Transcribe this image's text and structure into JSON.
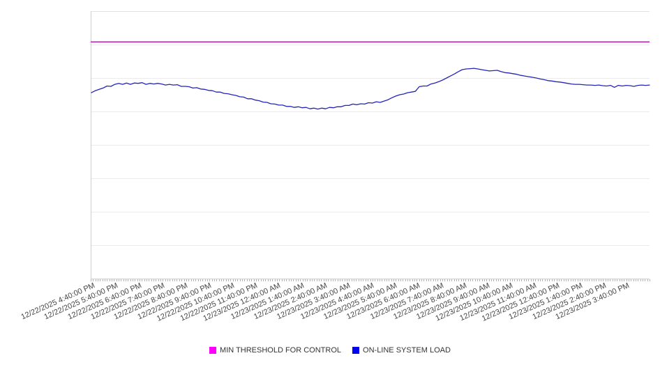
{
  "chart_data": {
    "type": "line",
    "title": "",
    "xlabel": "",
    "ylabel": "",
    "x_axis": {
      "tick_labels": [
        "12/22/2025 4:40:00 PM",
        "12/22/2025 5:40:00 PM",
        "12/22/2025 6:40:00 PM",
        "12/22/2025 7:40:00 PM",
        "12/22/2025 8:40:00 PM",
        "12/22/2025 9:40:00 PM",
        "12/22/2025 10:40:00 PM",
        "12/22/2025 11:40:00 PM",
        "12/23/2025 12:40:00 AM",
        "12/23/2025 1:40:00 AM",
        "12/23/2025 2:40:00 AM",
        "12/23/2025 3:40:00 AM",
        "12/23/2025 4:40:00 AM",
        "12/23/2025 5:40:00 AM",
        "12/23/2025 6:40:00 AM",
        "12/23/2025 7:40:00 AM",
        "12/23/2025 8:40:00 AM",
        "12/23/2025 9:40:00 AM",
        "12/23/2025 10:40:00 AM",
        "12/23/2025 11:40:00 AM",
        "12/23/2025 12:40:00 PM",
        "12/23/2025 1:40:00 PM",
        "12/23/2025 2:40:00 PM",
        "12/23/2025 3:40:00 PM"
      ],
      "minor_ticks_per_hour": 10
    },
    "y_axis": {
      "labels_visible": false,
      "unit": "unlabeled gridline units",
      "ylim": [
        0,
        8
      ],
      "gridline_interval": 1
    },
    "grid": "horizontal-only",
    "legend_position": "bottom-center",
    "series": [
      {
        "name": "MIN THRESHOLD FOR CONTROL",
        "type": "constant-line",
        "value": 7.08,
        "line_color": "#c32ac3",
        "swatch_color": "#ff00ff"
      },
      {
        "name": "ON-LINE SYSTEM LOAD",
        "type": "line",
        "line_color": "#2323b8",
        "swatch_color": "#0000ee",
        "x_start_label": "12/22/2025 4:40:00 PM",
        "interval_minutes": 10,
        "values": [
          5.56,
          5.62,
          5.66,
          5.7,
          5.76,
          5.75,
          5.81,
          5.84,
          5.81,
          5.85,
          5.81,
          5.85,
          5.84,
          5.86,
          5.81,
          5.84,
          5.82,
          5.84,
          5.82,
          5.79,
          5.81,
          5.79,
          5.8,
          5.75,
          5.75,
          5.74,
          5.7,
          5.71,
          5.67,
          5.66,
          5.63,
          5.62,
          5.58,
          5.58,
          5.54,
          5.53,
          5.5,
          5.48,
          5.44,
          5.43,
          5.38,
          5.38,
          5.34,
          5.32,
          5.28,
          5.27,
          5.23,
          5.22,
          5.19,
          5.19,
          5.15,
          5.15,
          5.12,
          5.14,
          5.11,
          5.12,
          5.08,
          5.1,
          5.07,
          5.1,
          5.08,
          5.12,
          5.11,
          5.14,
          5.14,
          5.18,
          5.18,
          5.22,
          5.2,
          5.23,
          5.22,
          5.26,
          5.25,
          5.29,
          5.27,
          5.31,
          5.35,
          5.41,
          5.46,
          5.5,
          5.52,
          5.56,
          5.58,
          5.6,
          5.74,
          5.76,
          5.76,
          5.82,
          5.85,
          5.89,
          5.94,
          6.0,
          6.06,
          6.12,
          6.19,
          6.25,
          6.27,
          6.28,
          6.29,
          6.27,
          6.25,
          6.23,
          6.21,
          6.22,
          6.23,
          6.19,
          6.16,
          6.15,
          6.13,
          6.11,
          6.08,
          6.06,
          6.04,
          6.02,
          6.0,
          5.97,
          5.95,
          5.92,
          5.91,
          5.89,
          5.88,
          5.86,
          5.84,
          5.82,
          5.81,
          5.81,
          5.8,
          5.79,
          5.79,
          5.78,
          5.79,
          5.77,
          5.76,
          5.78,
          5.72,
          5.78,
          5.76,
          5.78,
          5.77,
          5.75,
          5.78,
          5.79,
          5.78,
          5.79
        ]
      }
    ]
  },
  "legend": {
    "items": [
      {
        "label": "MIN THRESHOLD FOR CONTROL"
      },
      {
        "label": "ON-LINE SYSTEM LOAD"
      }
    ]
  }
}
